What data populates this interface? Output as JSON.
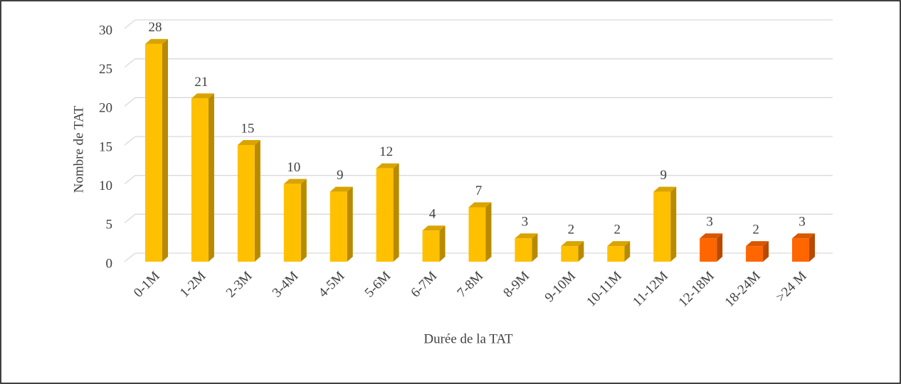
{
  "chart_data": {
    "type": "bar3d",
    "categories": [
      "0-1M",
      "1-2M",
      "2-3M",
      "3-4M",
      "4-5M",
      "5-6M",
      "6-7M",
      "7-8M",
      "8-9M",
      "9-10M",
      "10-11M",
      "11-12M",
      "12-18M",
      "18-24M",
      ">24 M"
    ],
    "values": [
      28,
      21,
      15,
      10,
      9,
      12,
      4,
      7,
      3,
      2,
      2,
      9,
      3,
      2,
      3
    ],
    "colors": [
      "#FFC000",
      "#FFC000",
      "#FFC000",
      "#FFC000",
      "#FFC000",
      "#FFC000",
      "#FFC000",
      "#FFC000",
      "#FFC000",
      "#FFC000",
      "#FFC000",
      "#FFC000",
      "#FF6600",
      "#FF6600",
      "#FF6600"
    ],
    "x_label": "Durée de la TAT",
    "y_label": "Nombre de TAT",
    "ylim": [
      0,
      30
    ],
    "yticks": [
      0,
      5,
      10,
      15,
      20,
      25,
      30
    ],
    "grid": true
  }
}
